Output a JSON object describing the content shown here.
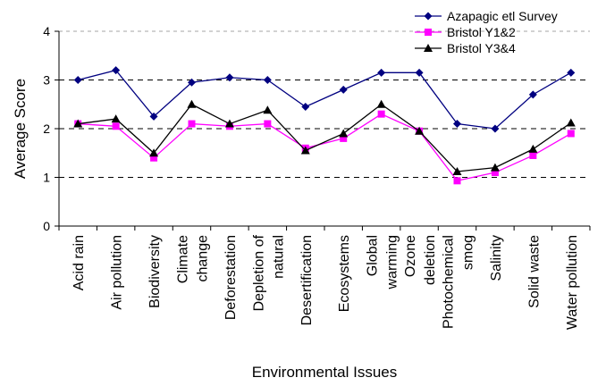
{
  "chart_data": {
    "type": "line",
    "title": "",
    "xlabel": "Environmental Issues",
    "ylabel": "Average Score",
    "ylim": [
      0,
      4
    ],
    "yticks": [
      0,
      1,
      2,
      3,
      4
    ],
    "grid": "dashed-horizontal",
    "legend_position": "top-right",
    "categories": [
      "Acid rain",
      "Air pollution",
      "Biodiversity",
      "Climate change",
      "Deforestation",
      "Depletion of natural",
      "Desertification",
      "Ecosystems",
      "Global warming",
      "Ozone deletion",
      "Photochemical smog",
      "Salinity",
      "Solid waste",
      "Water pollution"
    ],
    "category_lines": [
      [
        "Acid rain"
      ],
      [
        "Air pollution"
      ],
      [
        "Biodiversity"
      ],
      [
        "Climate",
        "change"
      ],
      [
        "Deforestation"
      ],
      [
        "Depletion of",
        "natural"
      ],
      [
        "Desertification"
      ],
      [
        "Ecosystems"
      ],
      [
        "Global",
        "warming"
      ],
      [
        "Ozone",
        "deletion"
      ],
      [
        "Photochemical",
        "smog"
      ],
      [
        "Salinity"
      ],
      [
        "Solid waste"
      ],
      [
        "Water pollution"
      ]
    ],
    "series": [
      {
        "name": "Azapagic etl Survey",
        "color": "#000080",
        "marker": "diamond",
        "values": [
          3.0,
          3.2,
          2.25,
          2.95,
          3.05,
          3.0,
          2.45,
          2.8,
          3.15,
          3.15,
          2.1,
          2.0,
          2.7,
          3.15
        ]
      },
      {
        "name": "Bristol Y1&2",
        "color": "#ff00ff",
        "marker": "square",
        "values": [
          2.1,
          2.05,
          1.4,
          2.1,
          2.05,
          2.1,
          1.6,
          1.8,
          2.3,
          1.95,
          0.93,
          1.1,
          1.45,
          1.9
        ]
      },
      {
        "name": "Bristol Y3&4",
        "color": "#000000",
        "marker": "triangle",
        "values": [
          2.1,
          2.2,
          1.5,
          2.5,
          2.1,
          2.38,
          1.55,
          1.9,
          2.5,
          1.95,
          1.12,
          1.2,
          1.58,
          2.12
        ]
      }
    ]
  }
}
